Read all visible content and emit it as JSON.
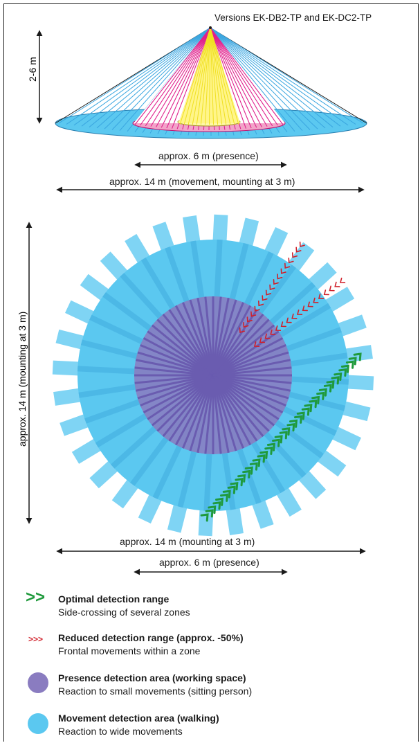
{
  "header": {
    "versions": "Versions EK-DB2-TP and EK-DC2-TP"
  },
  "side_view": {
    "height_label": "2-6 m",
    "presence_label": "approx. 6 m (presence)",
    "movement_label": "approx. 14 m (movement, mounting at 3 m)"
  },
  "top_view": {
    "vertical_label": "approx. 14 m (mounting at 3 m)",
    "horizontal_label": "approx. 14 m (mounting at 3 m)",
    "presence_label": "approx. 6 m (presence)"
  },
  "legend": {
    "optimal": {
      "symbol": ">>",
      "title": "Optimal detection range",
      "subtitle": "Side-crossing of several zones"
    },
    "reduced": {
      "symbol": ">>>",
      "title": "Reduced detection range (approx. -50%)",
      "subtitle": "Frontal movements within a zone"
    },
    "presence": {
      "title": "Presence detection area (working space)",
      "subtitle": "Reaction to small movements (sitting person)"
    },
    "movement": {
      "title": "Movement detection area (walking)",
      "subtitle": "Reaction to wide movements"
    }
  },
  "colors": {
    "movement": "#5bc8f0",
    "presence": "#8a7cc0",
    "optimal": "#1f9a3c",
    "reduced": "#d0202a",
    "cone_inner": "#fff58a",
    "cone_mid": "#e0208c"
  }
}
